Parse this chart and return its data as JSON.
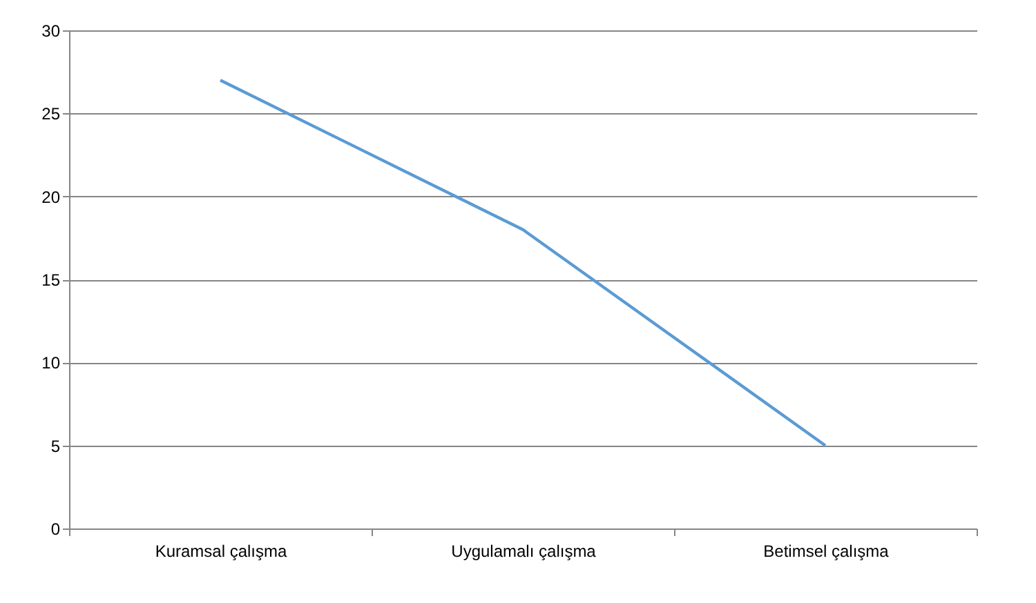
{
  "chart_data": {
    "type": "line",
    "categories": [
      "Kuramsal çalışma",
      "Uygulamalı çalışma",
      "Betimsel çalışma"
    ],
    "series": [
      {
        "color": "#5b9bd5",
        "values": [
          27,
          18,
          5
        ]
      }
    ],
    "ylim": [
      0,
      30
    ],
    "yticks": [
      0,
      5,
      10,
      15,
      20,
      25,
      30
    ],
    "grid": "y",
    "legend": false,
    "marker": "none",
    "line_style": "solid"
  }
}
